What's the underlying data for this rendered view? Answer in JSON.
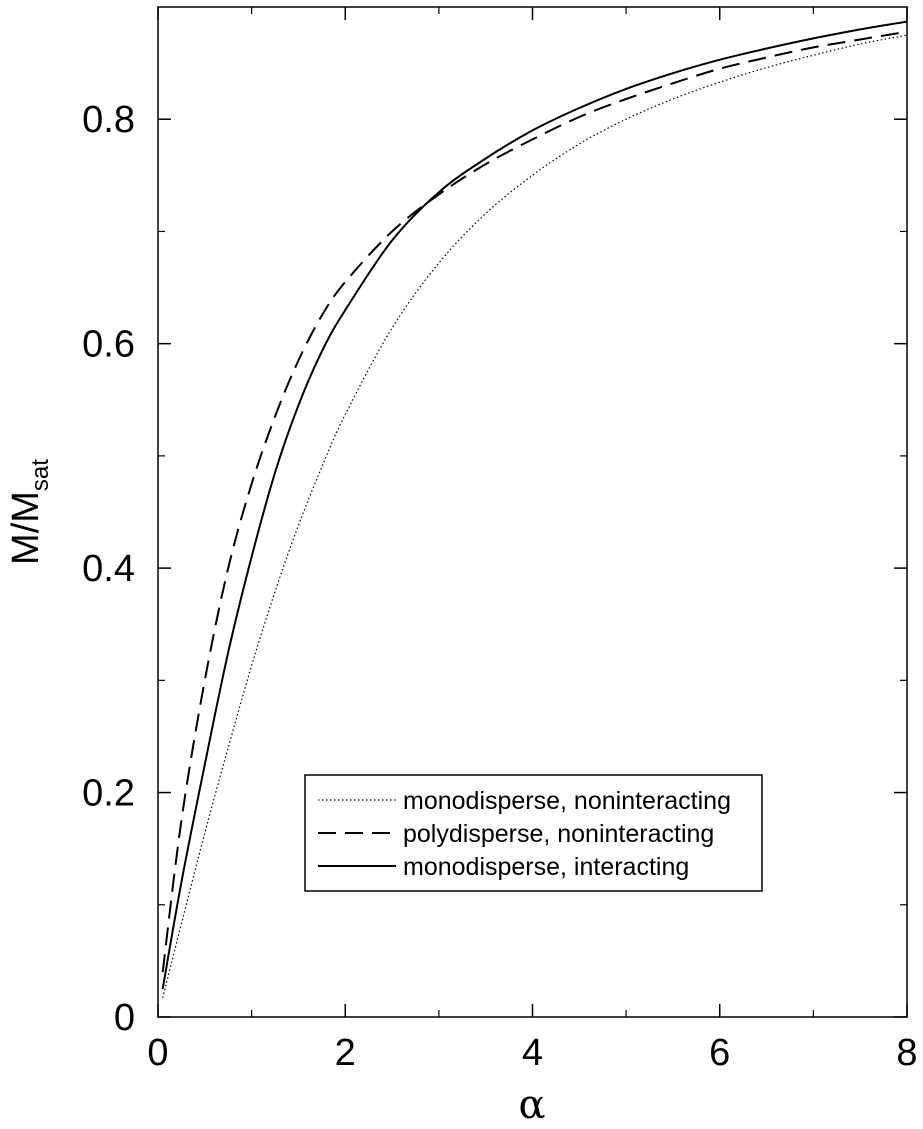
{
  "chart_data": {
    "type": "line",
    "title": "",
    "xlabel": "α",
    "ylabel_main": "M/M",
    "ylabel_sub": "sat",
    "xlim": [
      0,
      8
    ],
    "ylim": [
      0,
      0.9
    ],
    "xticks": [
      0,
      2,
      4,
      6,
      8
    ],
    "yticks": [
      0,
      0.2,
      0.4,
      0.6,
      0.8
    ],
    "xtick_labels": [
      "0",
      "2",
      "4",
      "6",
      "8"
    ],
    "ytick_labels": [
      "0",
      "0.2",
      "0.4",
      "0.6",
      "0.8"
    ],
    "x_minor_step": 1,
    "y_minor_step": 0.1,
    "grid": false,
    "legend_position": "lower-center",
    "series": [
      {
        "name": "monodisperse, noninteracting",
        "style": "dotted",
        "x": [
          0.05,
          0.25,
          0.5,
          0.75,
          1.0,
          1.25,
          1.5,
          1.75,
          2.0,
          2.5,
          3.0,
          3.5,
          4.0,
          4.5,
          5.0,
          5.5,
          6.0,
          6.5,
          7.0,
          7.5,
          8.0
        ],
        "y": [
          0.017,
          0.083,
          0.164,
          0.24,
          0.313,
          0.379,
          0.438,
          0.49,
          0.537,
          0.614,
          0.672,
          0.716,
          0.75,
          0.778,
          0.8,
          0.818,
          0.833,
          0.846,
          0.857,
          0.867,
          0.875
        ]
      },
      {
        "name": "polydisperse, noninteracting",
        "style": "dashed",
        "x": [
          0.05,
          0.25,
          0.5,
          0.75,
          1.0,
          1.25,
          1.5,
          1.75,
          2.0,
          2.5,
          3.0,
          3.5,
          4.0,
          4.5,
          5.0,
          5.5,
          6.0,
          6.5,
          7.0,
          7.5,
          8.0
        ],
        "y": [
          0.04,
          0.175,
          0.3,
          0.4,
          0.475,
          0.535,
          0.585,
          0.625,
          0.655,
          0.7,
          0.733,
          0.76,
          0.782,
          0.802,
          0.818,
          0.832,
          0.845,
          0.855,
          0.864,
          0.871,
          0.878
        ]
      },
      {
        "name": "monodisperse, interacting",
        "style": "solid",
        "x": [
          0.05,
          0.25,
          0.5,
          0.75,
          1.0,
          1.25,
          1.5,
          1.75,
          2.0,
          2.5,
          3.0,
          3.5,
          4.0,
          4.5,
          5.0,
          5.5,
          6.0,
          6.5,
          7.0,
          7.5,
          8.0
        ],
        "y": [
          0.025,
          0.12,
          0.225,
          0.325,
          0.41,
          0.485,
          0.545,
          0.593,
          0.63,
          0.692,
          0.735,
          0.765,
          0.79,
          0.81,
          0.827,
          0.841,
          0.853,
          0.863,
          0.872,
          0.88,
          0.887
        ]
      }
    ]
  }
}
